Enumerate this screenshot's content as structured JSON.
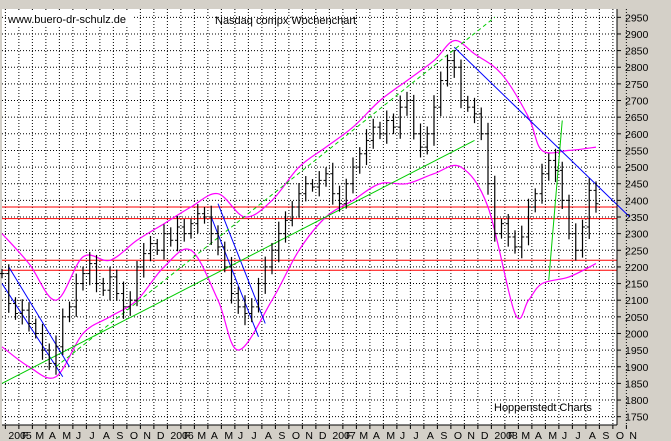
{
  "chart_data": {
    "type": "ohlc-bar",
    "title": "Nasdaq compx Wochenchart",
    "watermark": "www.buero-dr-schulz.de",
    "source": "Hoppenstedt Charts",
    "ylim": [
      1725,
      2975
    ],
    "yticks": [
      1750,
      1800,
      1850,
      1900,
      1950,
      2000,
      2050,
      2100,
      2150,
      2200,
      2250,
      2300,
      2350,
      2400,
      2450,
      2500,
      2550,
      2600,
      2650,
      2700,
      2750,
      2800,
      2850,
      2900,
      2950
    ],
    "xticks": [
      {
        "label": "2005",
        "tx": 0.5
      },
      {
        "label": "F",
        "tx": 2.5
      },
      {
        "label": "M",
        "tx": 4.5
      },
      {
        "label": "A",
        "tx": 6.5
      },
      {
        "label": "M",
        "tx": 8.5
      },
      {
        "label": "J",
        "tx": 10.5
      },
      {
        "label": "J",
        "tx": 12.5
      },
      {
        "label": "A",
        "tx": 14.5
      },
      {
        "label": "S",
        "tx": 16.5
      },
      {
        "label": "O",
        "tx": 18.5
      },
      {
        "label": "N",
        "tx": 20.5
      },
      {
        "label": "D",
        "tx": 22.5
      },
      {
        "label": "2006",
        "tx": 24.5
      },
      {
        "label": "F",
        "tx": 26.5
      },
      {
        "label": "M",
        "tx": 28.5
      },
      {
        "label": "A",
        "tx": 30.5
      },
      {
        "label": "M",
        "tx": 32.5
      },
      {
        "label": "J",
        "tx": 34.5
      },
      {
        "label": "J",
        "tx": 36.5
      },
      {
        "label": "A",
        "tx": 38.5
      },
      {
        "label": "S",
        "tx": 40.5
      },
      {
        "label": "O",
        "tx": 42.5
      },
      {
        "label": "N",
        "tx": 44.5
      },
      {
        "label": "D",
        "tx": 46.5
      },
      {
        "label": "2007",
        "tx": 48.5
      },
      {
        "label": "F",
        "tx": 50.5
      },
      {
        "label": "M",
        "tx": 52.5
      },
      {
        "label": "A",
        "tx": 54.5
      },
      {
        "label": "M",
        "tx": 56.5
      },
      {
        "label": "J",
        "tx": 58.5
      },
      {
        "label": "J",
        "tx": 60.5
      },
      {
        "label": "A",
        "tx": 62.5
      },
      {
        "label": "S",
        "tx": 64.5
      },
      {
        "label": "O",
        "tx": 66.5
      },
      {
        "label": "N",
        "tx": 68.5
      },
      {
        "label": "D",
        "tx": 70.5
      },
      {
        "label": "2008",
        "tx": 72.5
      },
      {
        "label": "F",
        "tx": 74.5
      },
      {
        "label": "M",
        "tx": 76.5
      },
      {
        "label": "A",
        "tx": 78.5
      },
      {
        "label": "M",
        "tx": 80.5
      },
      {
        "label": "J",
        "tx": 82.5
      },
      {
        "label": "J",
        "tx": 84.5
      },
      {
        "label": "A",
        "tx": 86.5
      },
      {
        "label": "S",
        "tx": 88.5
      },
      {
        "label": "O",
        "tx": 90.5
      },
      {
        "label": "N",
        "tx": 92.5
      }
    ],
    "price_series": [
      {
        "t": 0,
        "v": 2180
      },
      {
        "t": 1,
        "v": 2090
      },
      {
        "t": 2,
        "v": 2060
      },
      {
        "t": 3,
        "v": 2070
      },
      {
        "t": 4,
        "v": 2030
      },
      {
        "t": 5,
        "v": 2000
      },
      {
        "t": 6,
        "v": 1950
      },
      {
        "t": 7,
        "v": 1910
      },
      {
        "t": 8,
        "v": 1960
      },
      {
        "t": 9,
        "v": 2050
      },
      {
        "t": 10,
        "v": 2080
      },
      {
        "t": 11,
        "v": 2150
      },
      {
        "t": 12,
        "v": 2180
      },
      {
        "t": 13,
        "v": 2210
      },
      {
        "t": 14,
        "v": 2150
      },
      {
        "t": 15,
        "v": 2130
      },
      {
        "t": 16,
        "v": 2170
      },
      {
        "t": 17,
        "v": 2120
      },
      {
        "t": 18,
        "v": 2080
      },
      {
        "t": 19,
        "v": 2100
      },
      {
        "t": 20,
        "v": 2200
      },
      {
        "t": 21,
        "v": 2240
      },
      {
        "t": 22,
        "v": 2270
      },
      {
        "t": 23,
        "v": 2250
      },
      {
        "t": 24,
        "v": 2300
      },
      {
        "t": 25,
        "v": 2280
      },
      {
        "t": 26,
        "v": 2320
      },
      {
        "t": 27,
        "v": 2300
      },
      {
        "t": 28,
        "v": 2330
      },
      {
        "t": 29,
        "v": 2360
      },
      {
        "t": 30,
        "v": 2350
      },
      {
        "t": 31,
        "v": 2300
      },
      {
        "t": 32,
        "v": 2260
      },
      {
        "t": 33,
        "v": 2200
      },
      {
        "t": 34,
        "v": 2120
      },
      {
        "t": 35,
        "v": 2080
      },
      {
        "t": 36,
        "v": 2060
      },
      {
        "t": 37,
        "v": 2080
      },
      {
        "t": 38,
        "v": 2150
      },
      {
        "t": 39,
        "v": 2200
      },
      {
        "t": 40,
        "v": 2250
      },
      {
        "t": 41,
        "v": 2300
      },
      {
        "t": 42,
        "v": 2340
      },
      {
        "t": 43,
        "v": 2380
      },
      {
        "t": 44,
        "v": 2420
      },
      {
        "t": 45,
        "v": 2450
      },
      {
        "t": 46,
        "v": 2440
      },
      {
        "t": 47,
        "v": 2460
      },
      {
        "t": 48,
        "v": 2480
      },
      {
        "t": 49,
        "v": 2420
      },
      {
        "t": 50,
        "v": 2390
      },
      {
        "t": 51,
        "v": 2450
      },
      {
        "t": 52,
        "v": 2500
      },
      {
        "t": 53,
        "v": 2540
      },
      {
        "t": 54,
        "v": 2580
      },
      {
        "t": 55,
        "v": 2620
      },
      {
        "t": 56,
        "v": 2600
      },
      {
        "t": 57,
        "v": 2640
      },
      {
        "t": 58,
        "v": 2620
      },
      {
        "t": 59,
        "v": 2680
      },
      {
        "t": 60,
        "v": 2700
      },
      {
        "t": 61,
        "v": 2600
      },
      {
        "t": 62,
        "v": 2560
      },
      {
        "t": 63,
        "v": 2600
      },
      {
        "t": 64,
        "v": 2680
      },
      {
        "t": 65,
        "v": 2760
      },
      {
        "t": 66,
        "v": 2820
      },
      {
        "t": 67,
        "v": 2800
      },
      {
        "t": 68,
        "v": 2700
      },
      {
        "t": 69,
        "v": 2680
      },
      {
        "t": 70,
        "v": 2660
      },
      {
        "t": 71,
        "v": 2600
      },
      {
        "t": 72,
        "v": 2450
      },
      {
        "t": 73,
        "v": 2300
      },
      {
        "t": 74,
        "v": 2330
      },
      {
        "t": 75,
        "v": 2290
      },
      {
        "t": 76,
        "v": 2260
      },
      {
        "t": 77,
        "v": 2290
      },
      {
        "t": 78,
        "v": 2380
      },
      {
        "t": 79,
        "v": 2420
      },
      {
        "t": 80,
        "v": 2480
      },
      {
        "t": 81,
        "v": 2520
      },
      {
        "t": 82,
        "v": 2490
      },
      {
        "t": 83,
        "v": 2400
      },
      {
        "t": 84,
        "v": 2300
      },
      {
        "t": 85,
        "v": 2250
      },
      {
        "t": 86,
        "v": 2320
      },
      {
        "t": 87,
        "v": 2430
      },
      {
        "t": 88,
        "v": 2390
      }
    ],
    "bollinger_upper": [
      {
        "t": 0,
        "v": 2300
      },
      {
        "t": 4,
        "v": 2210
      },
      {
        "t": 8,
        "v": 2100
      },
      {
        "t": 12,
        "v": 2230
      },
      {
        "t": 16,
        "v": 2220
      },
      {
        "t": 20,
        "v": 2280
      },
      {
        "t": 24,
        "v": 2330
      },
      {
        "t": 28,
        "v": 2380
      },
      {
        "t": 32,
        "v": 2420
      },
      {
        "t": 36,
        "v": 2350
      },
      {
        "t": 40,
        "v": 2400
      },
      {
        "t": 44,
        "v": 2500
      },
      {
        "t": 48,
        "v": 2560
      },
      {
        "t": 52,
        "v": 2620
      },
      {
        "t": 56,
        "v": 2700
      },
      {
        "t": 60,
        "v": 2760
      },
      {
        "t": 64,
        "v": 2820
      },
      {
        "t": 67,
        "v": 2880
      },
      {
        "t": 70,
        "v": 2840
      },
      {
        "t": 74,
        "v": 2780
      },
      {
        "t": 78,
        "v": 2650
      },
      {
        "t": 80,
        "v": 2550
      },
      {
        "t": 84,
        "v": 2550
      },
      {
        "t": 88,
        "v": 2560
      }
    ],
    "bollinger_lower": [
      {
        "t": 0,
        "v": 1960
      },
      {
        "t": 4,
        "v": 1900
      },
      {
        "t": 8,
        "v": 1870
      },
      {
        "t": 12,
        "v": 2000
      },
      {
        "t": 16,
        "v": 2050
      },
      {
        "t": 20,
        "v": 2100
      },
      {
        "t": 24,
        "v": 2200
      },
      {
        "t": 28,
        "v": 2250
      },
      {
        "t": 32,
        "v": 2100
      },
      {
        "t": 35,
        "v": 1950
      },
      {
        "t": 40,
        "v": 2100
      },
      {
        "t": 44,
        "v": 2250
      },
      {
        "t": 48,
        "v": 2350
      },
      {
        "t": 52,
        "v": 2400
      },
      {
        "t": 56,
        "v": 2450
      },
      {
        "t": 60,
        "v": 2450
      },
      {
        "t": 64,
        "v": 2480
      },
      {
        "t": 68,
        "v": 2500
      },
      {
        "t": 72,
        "v": 2380
      },
      {
        "t": 76,
        "v": 2060
      },
      {
        "t": 78,
        "v": 2100
      },
      {
        "t": 80,
        "v": 2150
      },
      {
        "t": 84,
        "v": 2170
      },
      {
        "t": 88,
        "v": 2210
      }
    ],
    "support_lines": [
      2380,
      2345,
      2220,
      2190
    ],
    "trendlines_blue": [
      [
        {
          "t": 0,
          "v": 2150
        },
        {
          "t": 9,
          "v": 1870
        }
      ],
      [
        {
          "t": 1,
          "v": 2200
        },
        {
          "t": 10,
          "v": 1900
        }
      ],
      [
        {
          "t": 32,
          "v": 2390
        },
        {
          "t": 39,
          "v": 2030
        }
      ],
      [
        {
          "t": 31,
          "v": 2350
        },
        {
          "t": 38,
          "v": 1990
        }
      ],
      [
        {
          "t": 67,
          "v": 2860
        },
        {
          "t": 93,
          "v": 2350
        }
      ]
    ],
    "trendlines_green": [
      [
        {
          "t": 0,
          "v": 1850
        },
        {
          "t": 70,
          "v": 2580
        }
      ],
      [
        {
          "t": 8,
          "v": 1900
        },
        {
          "t": 73,
          "v": 2950
        }
      ],
      [
        {
          "t": 81,
          "v": 2160
        },
        {
          "t": 83,
          "v": 2640
        }
      ]
    ],
    "colors": {
      "background": "#d4d0c8",
      "plot": "#ffffff",
      "grid": "#000000",
      "bars": "#000000",
      "bollinger": "#ff00ff",
      "support": "#ff0000",
      "trend_blue": "#0000ff",
      "trend_green": "#00cc00"
    }
  }
}
